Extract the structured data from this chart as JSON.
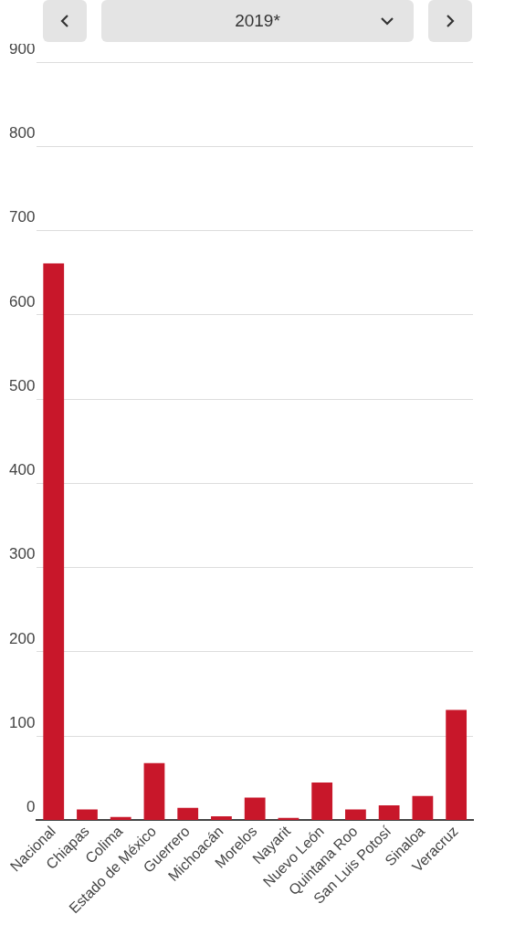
{
  "chart_data": {
    "type": "bar",
    "title": "2019*",
    "categories": [
      "Nacional",
      "Chiapas",
      "Colima",
      "Estado de México",
      "Guerrero",
      "Michoacán",
      "Morelos",
      "Nayarit",
      "Nuevo León",
      "Quintana Roo",
      "San Luis Potosí",
      "Sinaloa",
      "Veracruz"
    ],
    "values": [
      661,
      13,
      4,
      68,
      15,
      5,
      27,
      3,
      45,
      13,
      18,
      29,
      131
    ],
    "color": "#c8172a",
    "ylim": [
      0,
      900
    ],
    "yticks": [
      0,
      100,
      200,
      300,
      400,
      500,
      600,
      700,
      800,
      900
    ],
    "grid": "y",
    "legend": false
  }
}
